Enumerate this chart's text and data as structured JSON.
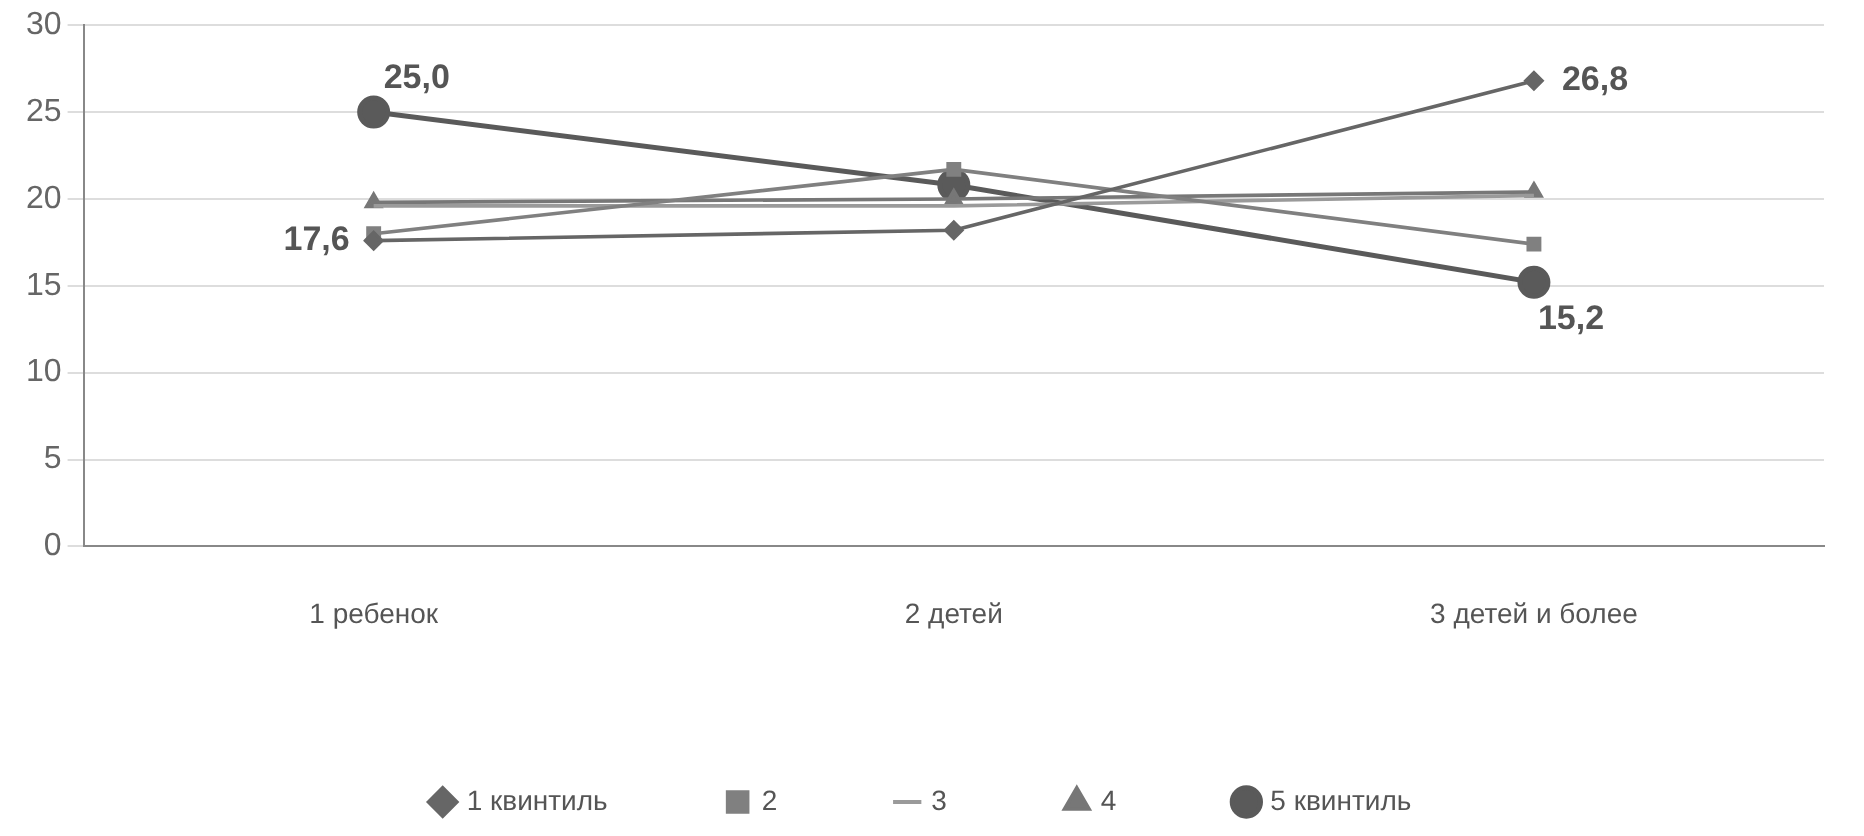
{
  "chart_data": {
    "type": "line",
    "categories": [
      "1 ребенок",
      "2 детей",
      "3 детей и более"
    ],
    "series": [
      {
        "name": "1 квинтиль",
        "color": "#666666",
        "marker": "diamond",
        "values": [
          17.6,
          18.2,
          26.8
        ],
        "value_labels": [
          "17,6",
          null,
          "26,8"
        ]
      },
      {
        "name": "2",
        "color": "#808080",
        "marker": "square",
        "values": [
          18.0,
          21.7,
          17.4
        ]
      },
      {
        "name": "3",
        "color": "#9a9a9a",
        "marker": "none",
        "values": [
          19.6,
          19.6,
          20.2
        ]
      },
      {
        "name": "4",
        "color": "#777777",
        "marker": "triangle",
        "values": [
          19.8,
          20.0,
          20.4
        ]
      },
      {
        "name": "5 квинтиль",
        "color": "#5a5a5a",
        "marker": "circle",
        "values": [
          25.0,
          20.8,
          15.2
        ],
        "value_labels": [
          "25,0",
          null,
          "15,2"
        ]
      }
    ],
    "ylim": [
      0,
      30
    ],
    "yticks": [
      0,
      5,
      10,
      15,
      20,
      25,
      30
    ],
    "grid": "y",
    "legend": "bottom"
  }
}
